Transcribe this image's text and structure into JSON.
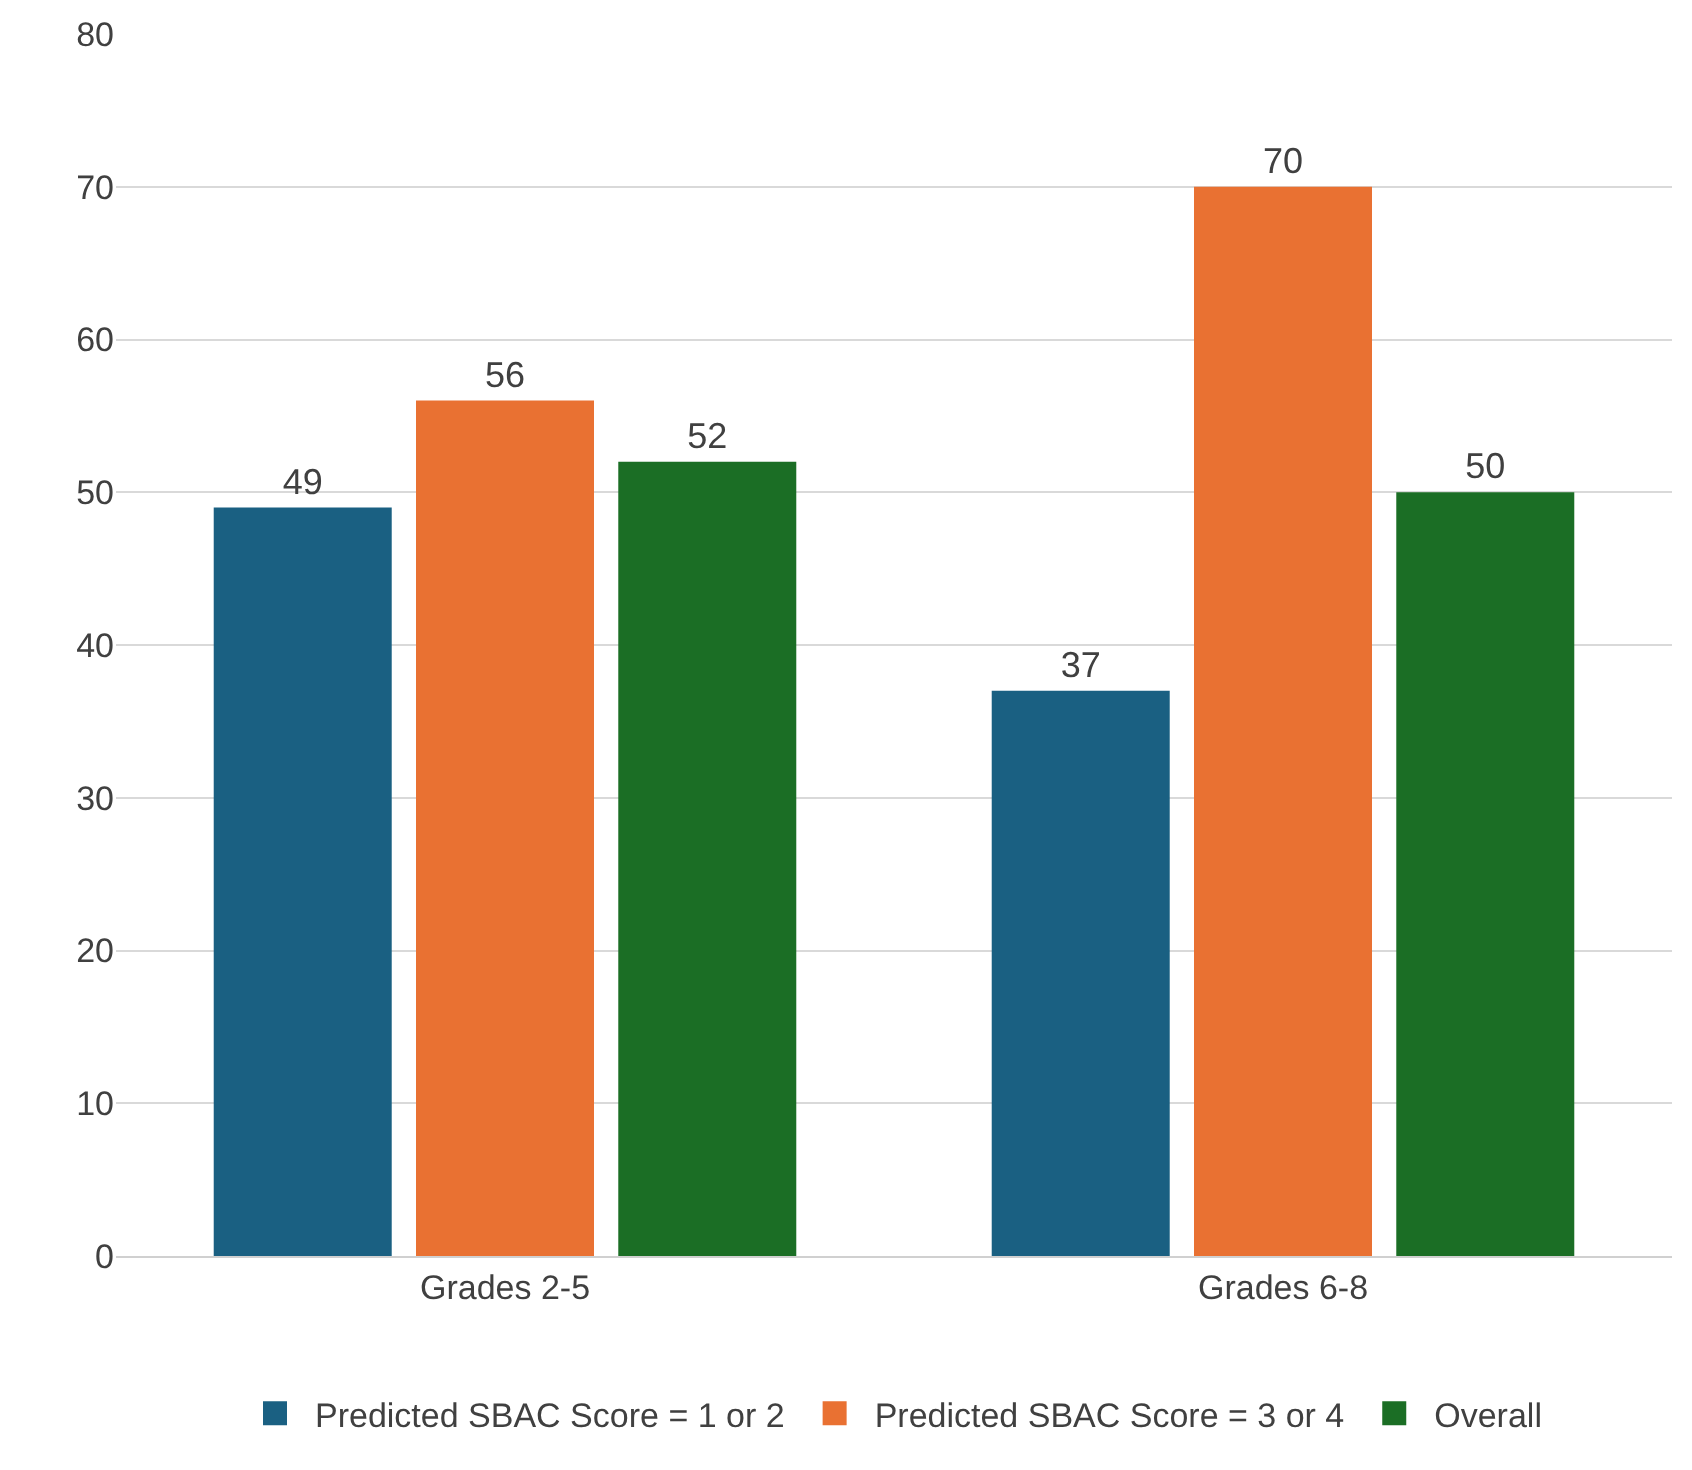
{
  "chart_data": {
    "type": "bar",
    "categories": [
      "Grades 2-5",
      "Grades 6-8"
    ],
    "series": [
      {
        "name": "Predicted SBAC Score = 1 or 2",
        "color": "#1a6082",
        "values": [
          49,
          37
        ]
      },
      {
        "name": "Predicted SBAC Score = 3 or 4",
        "color": "#e97132",
        "values": [
          56,
          70
        ]
      },
      {
        "name": "Overall",
        "color": "#1b6e25",
        "values": [
          52,
          50
        ]
      }
    ],
    "ylim": [
      0,
      80
    ],
    "yticks": [
      0,
      10,
      20,
      30,
      40,
      50,
      60,
      70,
      80
    ],
    "grid": "y",
    "legend": "bottom",
    "data_labels": true
  }
}
